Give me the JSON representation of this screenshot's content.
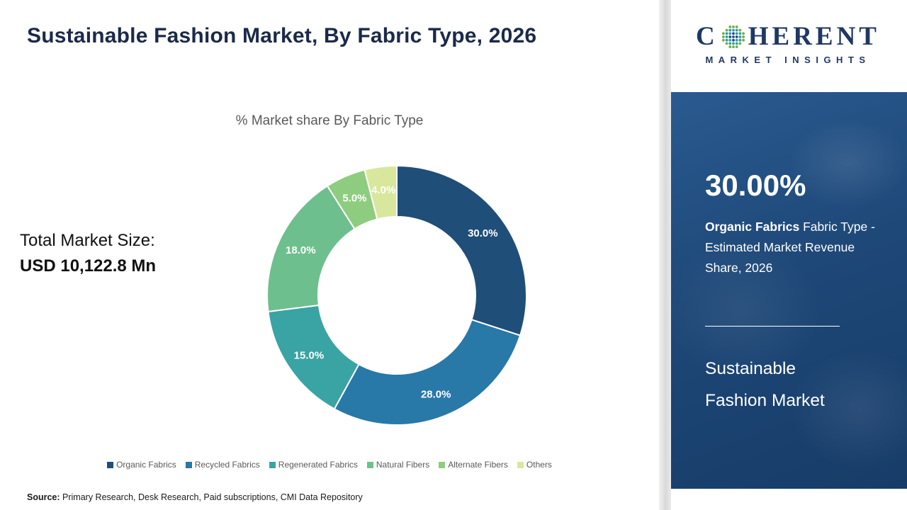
{
  "header": {
    "title": "Sustainable Fashion Market, By Fabric Type, 2026"
  },
  "logo": {
    "part1": "C",
    "part2": "HERENT",
    "subtitle": "MARKET INSIGHTS",
    "dot_colors": [
      "#1f4e79",
      "#2e9ca6",
      "#70ad47"
    ]
  },
  "left_panel": {
    "total_label": "Total Market Size:",
    "total_value": "USD 10,122.8 Mn"
  },
  "chart_data": {
    "type": "pie",
    "donut": true,
    "title": "% Market share By Fabric Type",
    "categories": [
      "Organic Fabrics",
      "Recycled Fabrics",
      "Regenerated Fabrics",
      "Natural Fibers",
      "Alternate Fibers",
      "Others"
    ],
    "values": [
      30,
      28,
      15,
      18,
      5,
      4
    ],
    "labels": [
      "30.0%",
      "28.0%",
      "15.0%",
      "18.0%",
      "5.0%",
      "4.0%"
    ],
    "colors": [
      "#1f4e79",
      "#2878a8",
      "#3aa3a3",
      "#6dc08d",
      "#8ecc7f",
      "#d8e79c"
    ],
    "legend_position": "bottom",
    "label_color": "#ffffff",
    "start_angle_deg": 0,
    "direction": "clockwise"
  },
  "sidebar": {
    "stat": "30.00%",
    "desc_bold": "Organic Fabrics",
    "desc_rest": " Fabric Type - Estimated Market Revenue Share, 2026",
    "market_line1": "Sustainable",
    "market_line2": "Fashion Market"
  },
  "source": {
    "label": "Source:",
    "text": " Primary Research, Desk Research, Paid subscriptions, CMI Data Repository"
  }
}
